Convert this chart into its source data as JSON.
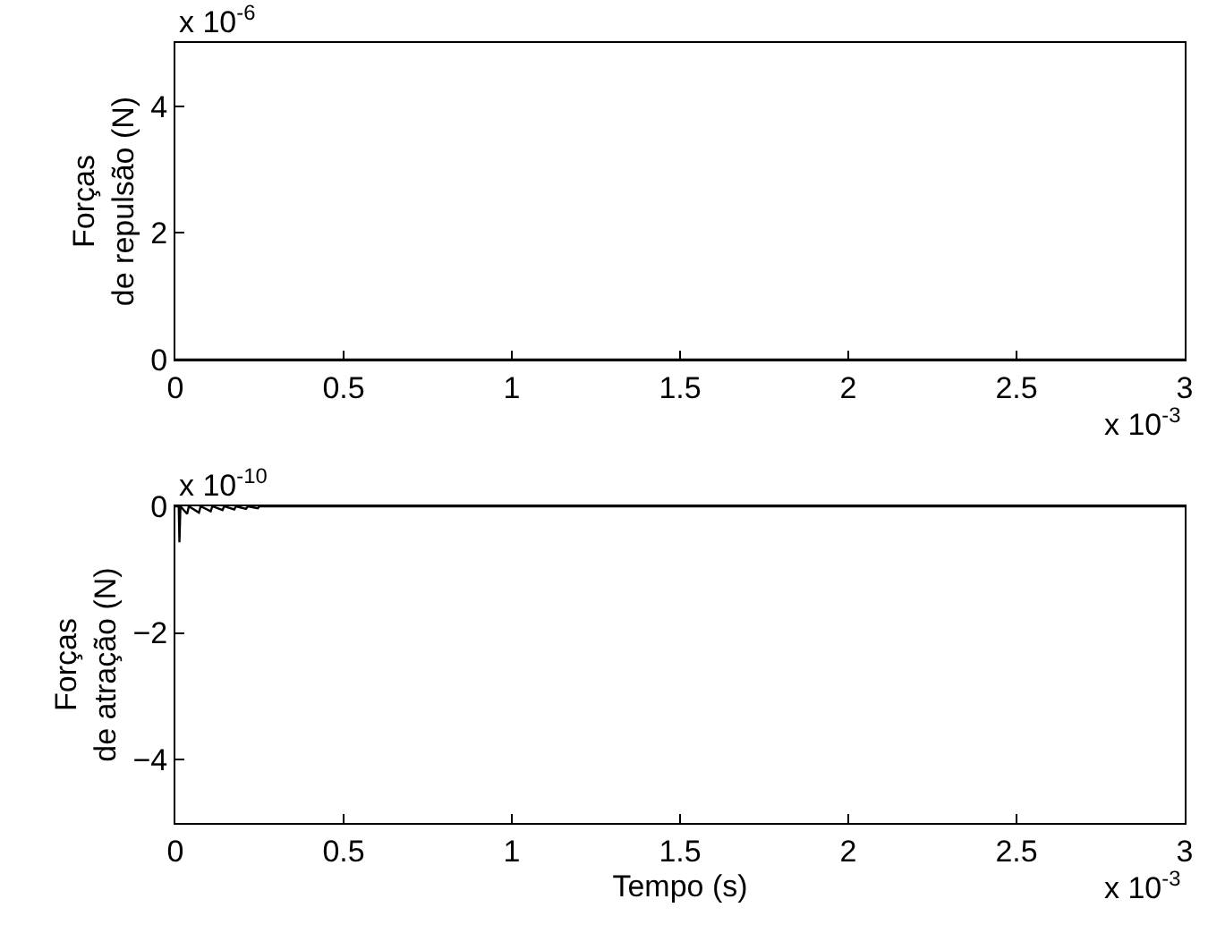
{
  "chart_data": [
    {
      "type": "line",
      "ylabel": "Forças\nde repulsão (N)",
      "x": [
        0,
        3
      ],
      "series": [
        {
          "color": "#000000",
          "values": [
            0,
            0
          ]
        }
      ],
      "xlim": [
        0,
        3
      ],
      "xticks": [
        0,
        0.5,
        1,
        1.5,
        2,
        2.5,
        3
      ],
      "ylim": [
        0,
        5
      ],
      "yticks": [
        0,
        2,
        4
      ],
      "annotations": [
        "x 10$^{-6}$",
        "x 10$^{-3}$"
      ]
    },
    {
      "type": "line",
      "xlabel": "Tempo (s)",
      "ylabel": "Forças\nde atração (N)",
      "x": [
        0,
        0.01,
        0.012,
        0.015,
        0.035,
        0.04,
        0.07,
        0.075,
        0.105,
        0.11,
        0.14,
        0.145,
        0.175,
        0.18,
        0.21,
        0.215,
        0.245,
        0.25,
        0.3,
        3
      ],
      "series": [
        {
          "color": "#000000",
          "values": [
            0,
            0,
            -0.57,
            0,
            -0.12,
            0,
            -0.1,
            0,
            -0.08,
            0,
            -0.06,
            0,
            -0.05,
            0,
            -0.04,
            0,
            -0.03,
            0,
            0,
            0
          ]
        }
      ],
      "xlim": [
        0,
        3
      ],
      "xticks": [
        0,
        0.5,
        1,
        1.5,
        2,
        2.5,
        3
      ],
      "ylim": [
        -5,
        0
      ],
      "yticks": [
        -4,
        -2,
        0
      ],
      "annotations": [
        "x 10$^{-10}$",
        "x 10$^{-3}$"
      ]
    }
  ]
}
